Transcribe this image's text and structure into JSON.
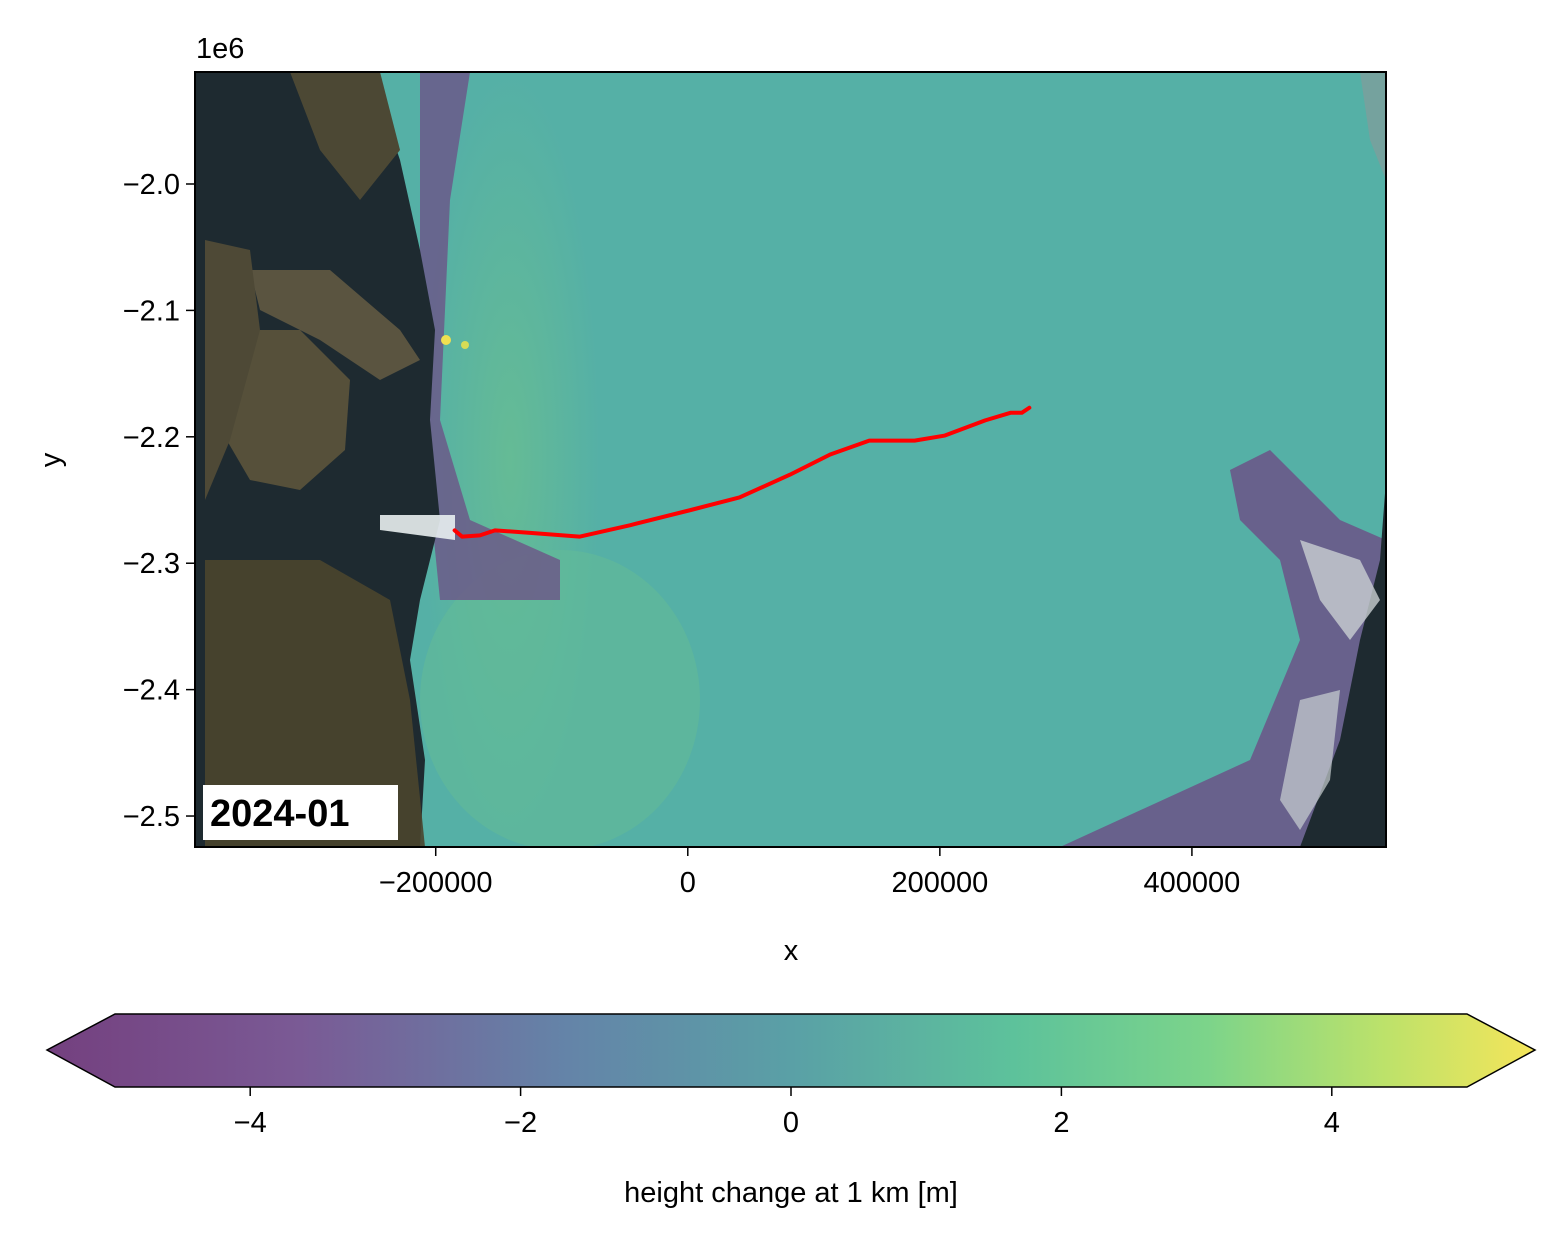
{
  "chart_data": {
    "type": "heatmap",
    "title": "",
    "xlabel": "x",
    "ylabel": "y",
    "y_offset_label": "1e6",
    "xlim": [
      -391000,
      554000
    ],
    "ylim": [
      -2.5245,
      -1.9114
    ],
    "xticks": [
      -200000,
      0,
      200000,
      400000
    ],
    "xtick_labels": [
      "−200000",
      "0",
      "200000",
      "400000"
    ],
    "yticks": [
      -2.0,
      -2.1,
      -2.2,
      -2.3,
      -2.4,
      -2.5
    ],
    "ytick_labels": [
      "−2.0",
      "−2.1",
      "−2.2",
      "−2.3",
      "−2.4",
      "−2.5"
    ],
    "grid": false,
    "annotation": "2024-01",
    "background": "satellite imagery with height-change overlay",
    "line_series": {
      "name": "flowline",
      "color": "#ff0000",
      "x": [
        -185000,
        -179000,
        -165000,
        -153000,
        -125000,
        -86000,
        -46000,
        2000,
        41000,
        81000,
        113000,
        144000,
        180000,
        204000,
        236000,
        256000,
        265000,
        271000
      ],
      "y": [
        -2.274,
        -2.279,
        -2.278,
        -2.274,
        -2.276,
        -2.279,
        -2.27,
        -2.258,
        -2.248,
        -2.23,
        -2.214,
        -2.203,
        -2.203,
        -2.199,
        -2.187,
        -2.181,
        -2.181,
        -2.177
      ]
    },
    "colorbar": {
      "label": "height change at 1 km [m]",
      "colormap": "viridis",
      "range": [
        -5,
        5
      ],
      "extend": "both",
      "ticks": [
        -4,
        -2,
        0,
        2,
        4
      ],
      "tick_labels": [
        "−4",
        "−2",
        "0",
        "2",
        "4"
      ],
      "colors": [
        "#74407f",
        "#6a72a0",
        "#5b97a8",
        "#58b3a0",
        "#72cf8a",
        "#b6dc66",
        "#f5e55a"
      ]
    }
  }
}
